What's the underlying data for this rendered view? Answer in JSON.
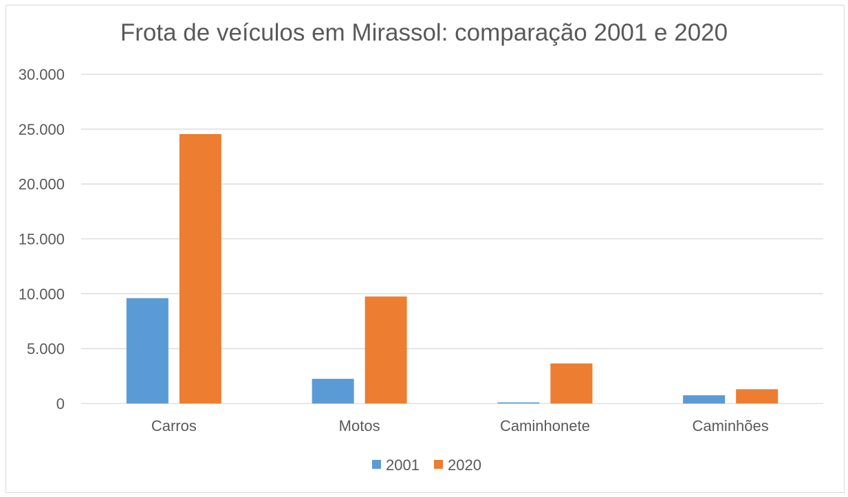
{
  "chart_data": {
    "type": "bar",
    "title": "Frota de veículos em Mirassol: comparação 2001 e 2020",
    "xlabel": "",
    "ylabel": "",
    "categories": [
      "Carros",
      "Motos",
      "Caminhonete",
      "Caminhões"
    ],
    "series": [
      {
        "name": "2001",
        "values": [
          9600,
          2250,
          100,
          750
        ],
        "color": "#5b9bd5"
      },
      {
        "name": "2020",
        "values": [
          24550,
          9750,
          3650,
          1300
        ],
        "color": "#ed7d31"
      }
    ],
    "ylim": [
      0,
      30000
    ],
    "yticks": [
      0,
      5000,
      10000,
      15000,
      20000,
      25000,
      30000
    ],
    "ytick_labels": [
      "0",
      "5.000",
      "10.000",
      "15.000",
      "20.000",
      "25.000",
      "30.000"
    ],
    "grid": true,
    "legend_position": "bottom"
  }
}
